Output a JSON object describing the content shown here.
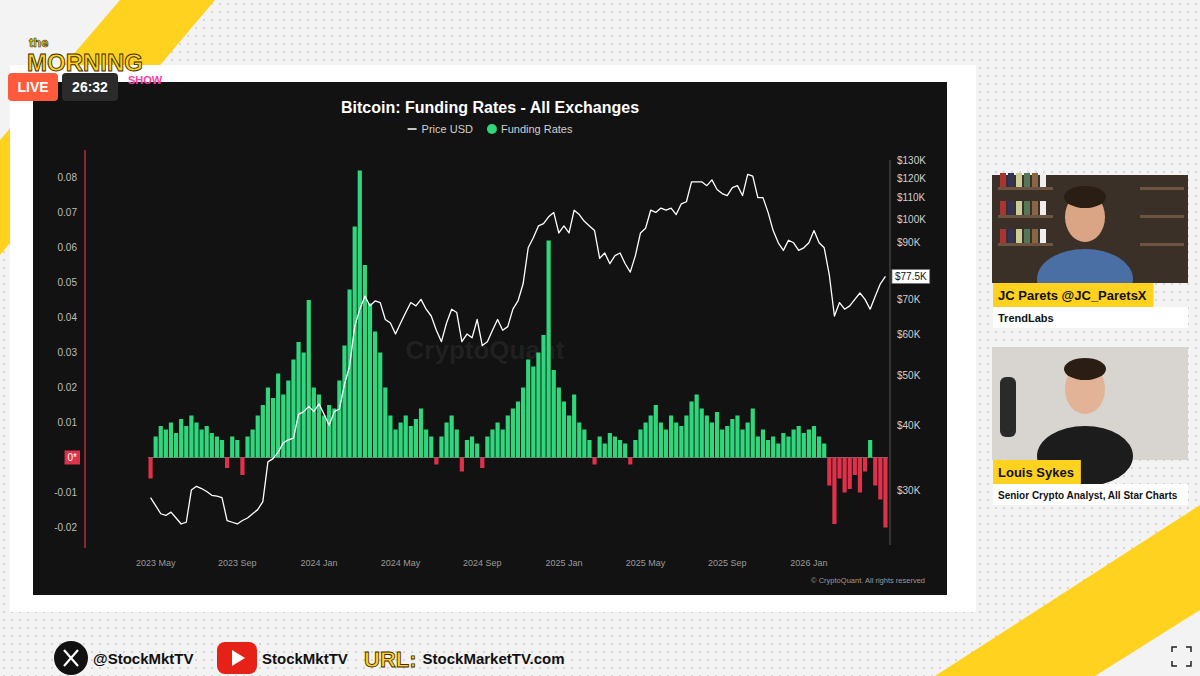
{
  "chart_data": {
    "type": "bar",
    "title": "Bitcoin: Funding Rates - All Exchanges",
    "categories": [
      null,
      "2023 May",
      null,
      null,
      null,
      null,
      null,
      null,
      null,
      null,
      null,
      null,
      null,
      null,
      null,
      null,
      null,
      "2023 Sep",
      null,
      null,
      null,
      null,
      null,
      null,
      null,
      null,
      null,
      null,
      null,
      null,
      null,
      null,
      null,
      "2024 Jan",
      null,
      null,
      null,
      null,
      null,
      null,
      null,
      null,
      null,
      null,
      null,
      null,
      null,
      null,
      null,
      "2024 May",
      null,
      null,
      null,
      null,
      null,
      null,
      null,
      null,
      null,
      null,
      null,
      null,
      null,
      null,
      null,
      "2024 Sep",
      null,
      null,
      null,
      null,
      null,
      null,
      null,
      null,
      null,
      null,
      null,
      null,
      null,
      null,
      null,
      "2025 Jan",
      null,
      null,
      null,
      null,
      null,
      null,
      null,
      null,
      null,
      null,
      null,
      null,
      null,
      null,
      null,
      "2025 May",
      null,
      null,
      null,
      null,
      null,
      null,
      null,
      null,
      null,
      null,
      null,
      null,
      null,
      null,
      null,
      "2025 Sep",
      null,
      null,
      null,
      null,
      null,
      null,
      null,
      null,
      null,
      null,
      null,
      null,
      null,
      null,
      null,
      "2026 Jan",
      null,
      null,
      null,
      null,
      null,
      null,
      null,
      null,
      null,
      null,
      null,
      null,
      null,
      null,
      null
    ],
    "series": [
      {
        "name": "Funding Rates",
        "type": "bar",
        "color": "#2fd67b",
        "values": [
          -0.006,
          0.006,
          0.009,
          0.008,
          0.01,
          0.007,
          0.011,
          0.009,
          0.012,
          0.01,
          0.008,
          0.009,
          0.007,
          0.006,
          0.005,
          -0.003,
          0.006,
          0.005,
          -0.005,
          0.006,
          0.008,
          0.012,
          0.015,
          0.02,
          0.017,
          0.024,
          0.018,
          0.022,
          0.028,
          0.033,
          0.03,
          0.045,
          0.02,
          0.018,
          0.012,
          0.015,
          0.014,
          0.022,
          0.032,
          0.048,
          0.066,
          0.082,
          0.055,
          0.044,
          0.036,
          0.03,
          0.02,
          0.012,
          0.008,
          0.01,
          0.012,
          0.009,
          0.011,
          0.014,
          0.008,
          0.006,
          -0.002,
          0.006,
          0.01,
          0.012,
          0.008,
          -0.004,
          0.005,
          0.006,
          0.004,
          -0.003,
          0.006,
          0.008,
          0.01,
          0.008,
          0.012,
          0.014,
          0.016,
          0.02,
          0.028,
          0.026,
          0.03,
          0.035,
          0.062,
          0.025,
          0.02,
          0.016,
          0.012,
          0.018,
          0.01,
          0.008,
          0.005,
          -0.002,
          0.006,
          0.004,
          0.007,
          0.006,
          0.005,
          0.004,
          -0.002,
          0.005,
          0.008,
          0.01,
          0.012,
          0.015,
          0.01,
          0.008,
          0.012,
          0.01,
          0.009,
          0.012,
          0.016,
          0.018,
          0.014,
          0.012,
          0.01,
          0.013,
          0.008,
          0.009,
          0.011,
          0.012,
          0.008,
          0.01,
          0.014,
          0.006,
          0.008,
          0.005,
          0.006,
          0.004,
          0.007,
          0.006,
          0.008,
          0.009,
          0.007,
          0.008,
          0.009,
          0.006,
          0.004,
          -0.008,
          -0.019,
          -0.006,
          -0.01,
          -0.009,
          -0.005,
          -0.01,
          -0.004,
          0.005,
          -0.008,
          -0.012,
          -0.02
        ]
      },
      {
        "name": "Price USD",
        "type": "line",
        "color": "#ffffff",
        "axis": "y2",
        "values": [
          29000,
          28000,
          27000,
          26800,
          27200,
          26500,
          25800,
          26000,
          30000,
          30500,
          30200,
          29800,
          29300,
          29200,
          29000,
          26200,
          26000,
          25800,
          26200,
          26500,
          27000,
          27500,
          28500,
          34000,
          34500,
          35500,
          37000,
          37500,
          37800,
          42000,
          42500,
          43500,
          42500,
          44000,
          42000,
          40000,
          42500,
          43000,
          48000,
          52000,
          62000,
          67000,
          71000,
          68000,
          69500,
          69000,
          64000,
          63000,
          60000,
          63000,
          66000,
          69000,
          68000,
          70000,
          67000,
          65000,
          61000,
          58000,
          63000,
          67000,
          66000,
          58000,
          60000,
          59000,
          64000,
          57000,
          58000,
          61000,
          64000,
          61000,
          62000,
          67000,
          69500,
          75000,
          88000,
          92000,
          97000,
          98000,
          101000,
          103000,
          94000,
          97000,
          94000,
          104000,
          102000,
          99000,
          97000,
          95000,
          84000,
          86000,
          82000,
          85000,
          86000,
          82000,
          79000,
          85000,
          94000,
          96000,
          104000,
          103000,
          105000,
          104000,
          105000,
          102000,
          107000,
          108000,
          118000,
          118000,
          118000,
          116000,
          119000,
          114000,
          112000,
          111000,
          115000,
          116000,
          111000,
          122000,
          121000,
          110000,
          110000,
          103000,
          95000,
          90000,
          87000,
          91000,
          90000,
          87000,
          88000,
          90000,
          95000,
          90000,
          88000,
          78000,
          65000,
          69000,
          67000,
          68000,
          70000,
          72000,
          70000,
          67000,
          71000,
          75000,
          77500
        ]
      }
    ],
    "ylim": [
      -0.025,
      0.085
    ],
    "yticks": [
      -0.02,
      -0.01,
      {
        "value": 0,
        "label": "0*"
      },
      0.01,
      0.02,
      0.03,
      0.04,
      0.05,
      0.06,
      0.07,
      0.08
    ],
    "y2lim": [
      23500,
      130000
    ],
    "y2ticks": [
      {
        "value": 30000,
        "label": "$30K"
      },
      {
        "value": 40000,
        "label": "$40K"
      },
      {
        "value": 50000,
        "label": "$50K"
      },
      {
        "value": 60000,
        "label": "$60K"
      },
      {
        "value": 70000,
        "label": "$70K"
      },
      {
        "value": 90000,
        "label": "$90K"
      },
      {
        "value": 100000,
        "label": "$100K"
      },
      {
        "value": 110000,
        "label": "$110K"
      },
      {
        "value": 120000,
        "label": "$120K"
      },
      {
        "value": 130000,
        "label": "$130K"
      }
    ],
    "log": "y2",
    "grid": false,
    "legend": "top",
    "annotations": [
      {
        "value": 77500,
        "label": "$77.5K"
      }
    ],
    "watermark": "CryptoQuant",
    "credit": "© CryptoQuant. All rights reserved"
  },
  "overlay": {
    "logo": {
      "line1": "the",
      "line2": "MORNING",
      "line3": "SHOW"
    },
    "live": "LIVE",
    "timer": "26:32",
    "hosts": [
      {
        "name": "JC Parets @JC_ParetsX",
        "affiliation": "TrendLabs"
      },
      {
        "name": "Louis Sykes",
        "affiliation": "Senior Crypto Analyst, All Star Charts"
      }
    ],
    "footer": {
      "x_handle": "@StockMktTV",
      "youtube": "StockMktTV",
      "url_label": "URL:",
      "url": "StockMarketTV.com"
    }
  }
}
